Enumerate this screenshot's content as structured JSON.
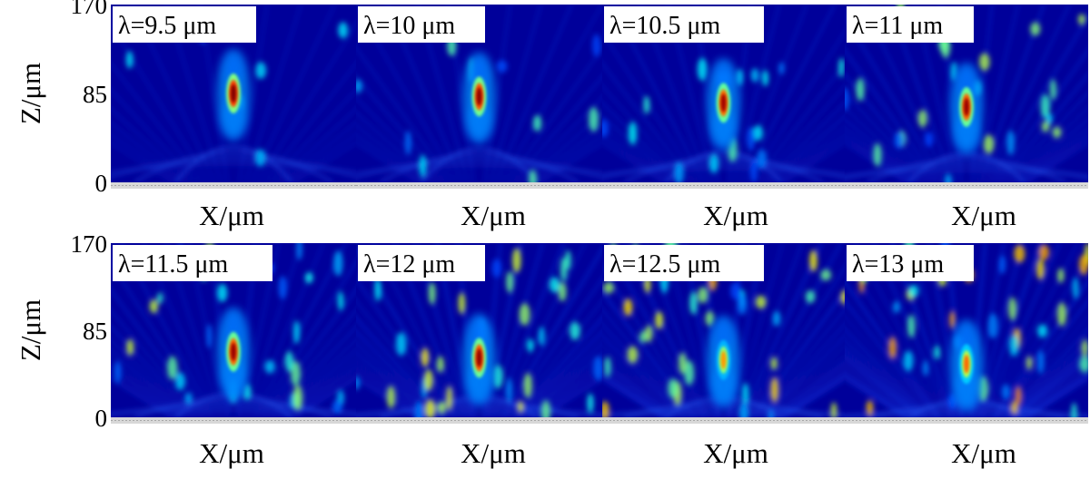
{
  "chart_data": {
    "type": "heatmap",
    "rows": 2,
    "cols": 4,
    "ylabel": "Z/μm",
    "xlabel": "X/μm",
    "yticks": [
      "0",
      "85",
      "170"
    ],
    "ylim": [
      0,
      170
    ],
    "colormap": [
      "#00008f",
      "#0000ff",
      "#00ffff",
      "#ffff00",
      "#ff0000",
      "#800000"
    ],
    "panels": [
      {
        "label": "λ=9.5 μm",
        "wavelength": 9.5,
        "focus_z": 85,
        "peak": 1.0
      },
      {
        "label": "λ=10 μm",
        "wavelength": 10,
        "focus_z": 82,
        "peak": 0.98
      },
      {
        "label": "λ=10.5 μm",
        "wavelength": 10.5,
        "focus_z": 76,
        "peak": 0.95
      },
      {
        "label": "λ=11 μm",
        "wavelength": 11,
        "focus_z": 72,
        "peak": 0.96
      },
      {
        "label": "λ=11.5 μm",
        "wavelength": 11.5,
        "focus_z": 64,
        "peak": 0.96
      },
      {
        "label": "λ=12 μm",
        "wavelength": 12,
        "focus_z": 58,
        "peak": 0.97
      },
      {
        "label": "λ=12.5 μm",
        "wavelength": 12.5,
        "focus_z": 56,
        "peak": 0.68
      },
      {
        "label": "λ=13 μm",
        "wavelength": 13,
        "focus_z": 52,
        "peak": 0.72
      }
    ]
  }
}
